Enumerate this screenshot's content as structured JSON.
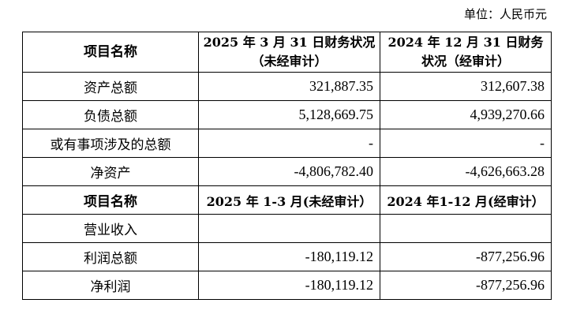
{
  "unit": "单位：人民币元",
  "balance": {
    "headers": [
      "项目名称",
      "2025 年 3 月 31 日财务状况（未经审计）",
      "2024 年 12 月 31 日财务状况（经审计）"
    ],
    "rows": [
      {
        "name": "资产总额",
        "v1": "321,887.35",
        "v2": "312,607.38"
      },
      {
        "name": "负债总额",
        "v1": "5,128,669.75",
        "v2": "4,939,270.66"
      },
      {
        "name": "或有事项涉及的总额",
        "v1": "-",
        "v2": "-"
      },
      {
        "name": "净资产",
        "v1": "-4,806,782.40",
        "v2": "-4,626,663.28"
      }
    ]
  },
  "income": {
    "headers": [
      "项目名称",
      "2025 年 1-3 月(未经审计）",
      "2024 年1-12 月(经审计）"
    ],
    "rows": [
      {
        "name": "营业收入",
        "v1": "",
        "v2": ""
      },
      {
        "name": "利润总额",
        "v1": "-180,119.12",
        "v2": "-877,256.96"
      },
      {
        "name": "净利润",
        "v1": "-180,119.12",
        "v2": "-877,256.96"
      }
    ]
  }
}
